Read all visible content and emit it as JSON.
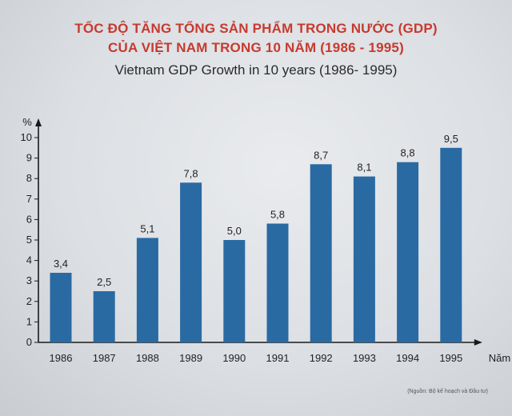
{
  "title_vn_line1": "TỐC ĐỘ TĂNG TỔNG SẢN PHẨM TRONG NƯỚC (GDP)",
  "title_vn_line2": "CỦA VIỆT NAM TRONG 10 NĂM (1986 - 1995)",
  "title_en": "Vietnam GDP Growth in 10 years (1986- 1995)",
  "source": "(Nguồn: Bộ kế hoạch và Đầu tư)",
  "colors": {
    "bar": "#2a6aa3",
    "title": "#c63a2f",
    "axis": "#1a1a1a"
  },
  "chart_data": {
    "type": "bar",
    "categories": [
      "1986",
      "1987",
      "1988",
      "1989",
      "1990",
      "1991",
      "1992",
      "1993",
      "1994",
      "1995"
    ],
    "values": [
      3.4,
      2.5,
      5.1,
      7.8,
      5.0,
      5.8,
      8.7,
      8.1,
      8.8,
      9.5
    ],
    "value_labels": [
      "3,4",
      "2,5",
      "5,1",
      "7,8",
      "5,0",
      "5,8",
      "8,7",
      "8,1",
      "8,8",
      "9,5"
    ],
    "ylabel": "%",
    "xlabel": "Năm",
    "ylim": [
      0,
      10
    ],
    "yticks": [
      "0",
      "1",
      "2",
      "3",
      "4",
      "5",
      "6",
      "7",
      "8",
      "9",
      "10"
    ],
    "grid": false,
    "legend": "none"
  }
}
